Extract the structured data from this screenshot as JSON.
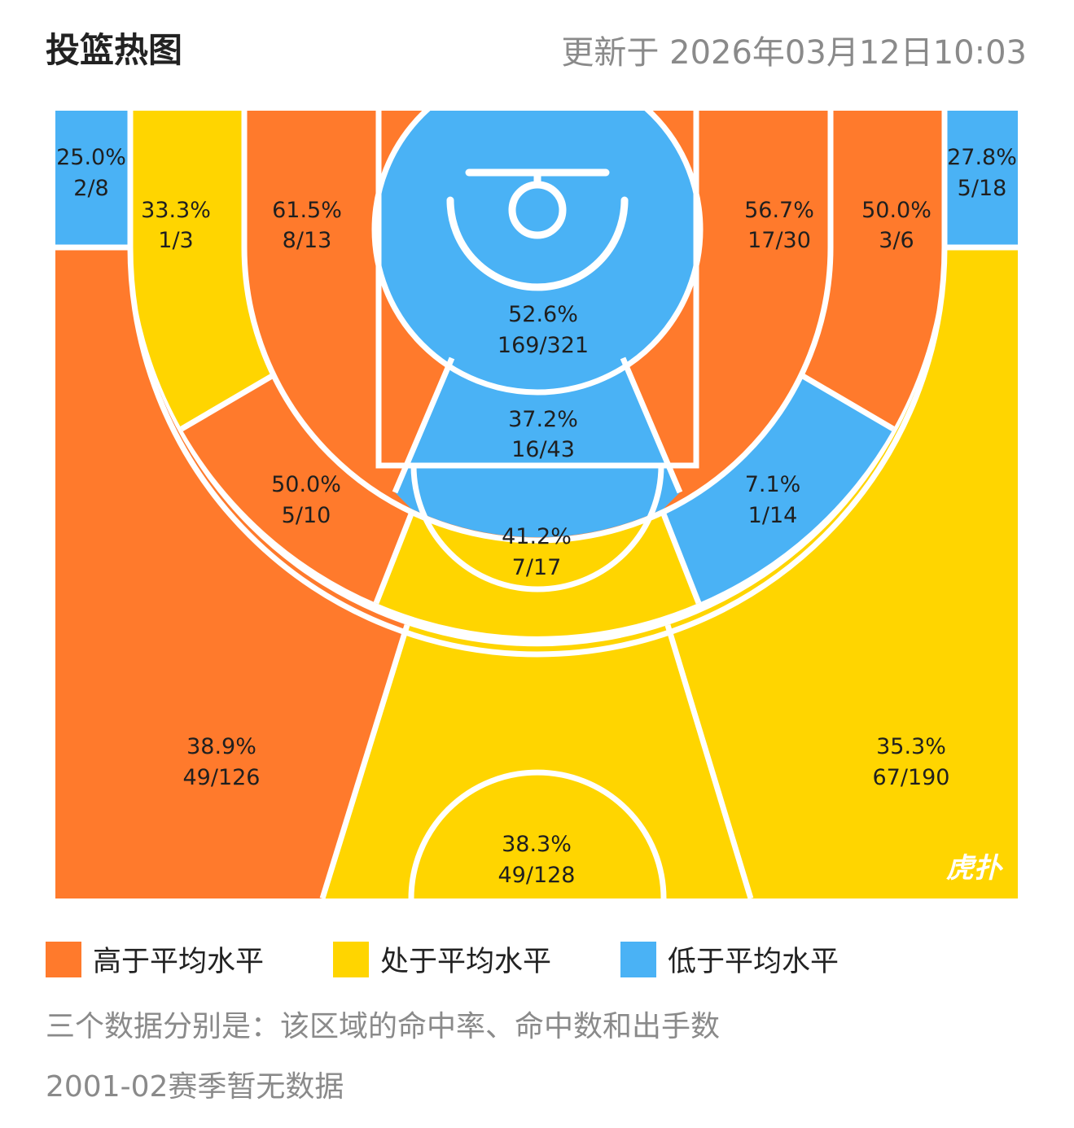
{
  "header": {
    "title": "投篮热图",
    "updated": "更新于 2026年03月12日10:03"
  },
  "colors": {
    "above": "#FF7A2C",
    "average": "#FFD500",
    "below": "#4AB2F5"
  },
  "chart_data": {
    "type": "heatmap",
    "zones": [
      {
        "id": "left-corner-3",
        "rate": "25.0%",
        "made_attempted": "2/8",
        "level": "below"
      },
      {
        "id": "right-corner-3",
        "rate": "27.8%",
        "made_attempted": "5/18",
        "level": "below"
      },
      {
        "id": "left-baseline-long-2",
        "rate": "33.3%",
        "made_attempted": "1/3",
        "level": "average"
      },
      {
        "id": "left-baseline-mid",
        "rate": "61.5%",
        "made_attempted": "8/13",
        "level": "above"
      },
      {
        "id": "restricted-area",
        "rate": "52.6%",
        "made_attempted": "169/321",
        "level": "below"
      },
      {
        "id": "paint-non-ra",
        "rate": "37.2%",
        "made_attempted": "16/43",
        "level": "below"
      },
      {
        "id": "right-baseline-mid",
        "rate": "56.7%",
        "made_attempted": "17/30",
        "level": "above"
      },
      {
        "id": "right-baseline-long-2",
        "rate": "50.0%",
        "made_attempted": "3/6",
        "level": "above"
      },
      {
        "id": "left-wing-long-2",
        "rate": "50.0%",
        "made_attempted": "5/10",
        "level": "above"
      },
      {
        "id": "top-key-long-2",
        "rate": "41.2%",
        "made_attempted": "7/17",
        "level": "average"
      },
      {
        "id": "right-wing-long-2",
        "rate": "7.1%",
        "made_attempted": "1/14",
        "level": "below"
      },
      {
        "id": "left-wing-3",
        "rate": "38.9%",
        "made_attempted": "49/126",
        "level": "above"
      },
      {
        "id": "top-3",
        "rate": "38.3%",
        "made_attempted": "49/128",
        "level": "average"
      },
      {
        "id": "right-wing-3",
        "rate": "35.3%",
        "made_attempted": "67/190",
        "level": "average"
      }
    ]
  },
  "legend": [
    {
      "label": "高于平均水平",
      "level": "above"
    },
    {
      "label": "处于平均水平",
      "level": "average"
    },
    {
      "label": "低于平均水平",
      "level": "below"
    }
  ],
  "notes": {
    "explanation": "三个数据分别是：该区域的命中率、命中数和出手数",
    "season_note": "2001-02赛季暂无数据"
  },
  "logo": {
    "icon": "hupu-logo",
    "text": "虎扑"
  }
}
